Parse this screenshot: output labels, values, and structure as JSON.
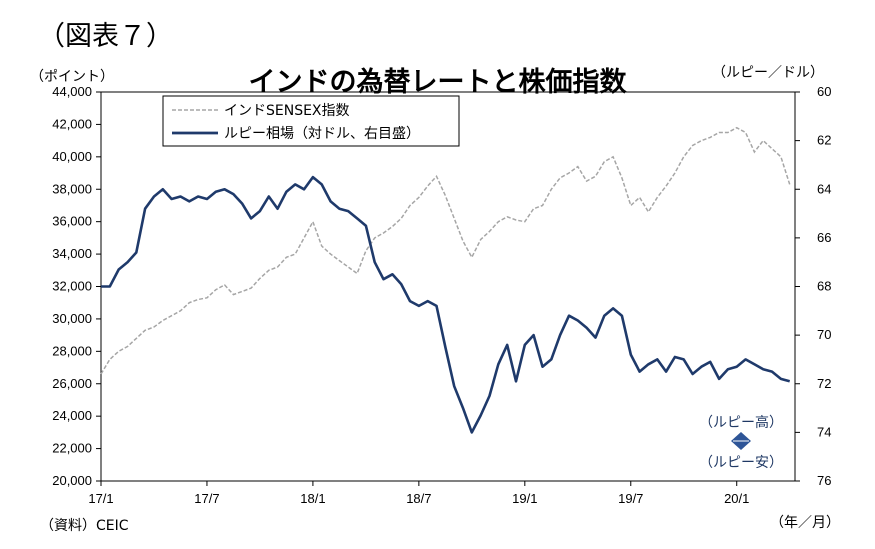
{
  "figure_label": "（図表７）",
  "source": "（資料）CEIC",
  "annotations": {
    "rupee_up": "（ルピー高）",
    "rupee_down": "（ルピー安）"
  },
  "colors": {
    "sensex": "#a6a6a6",
    "rupee": "#1f3a6b",
    "arrow": "#2e5597"
  },
  "chart_data": {
    "type": "line",
    "title": "インドの為替レートと株価指数",
    "ylabel_left": "（ポイント）",
    "ylabel_right": "（ルピー／ドル）",
    "xlabel_unit": "（年／月）",
    "x_ticks": [
      "17/1",
      "17/7",
      "18/1",
      "18/7",
      "19/1",
      "19/7",
      "20/1"
    ],
    "y_left": {
      "min": 20000,
      "max": 44000,
      "ticks": [
        "20,000",
        "22,000",
        "24,000",
        "26,000",
        "28,000",
        "30,000",
        "32,000",
        "34,000",
        "36,000",
        "38,000",
        "40,000",
        "42,000",
        "44,000"
      ]
    },
    "y_right": {
      "min": 60,
      "max": 76,
      "inverted": true,
      "ticks": [
        "60",
        "62",
        "64",
        "66",
        "68",
        "70",
        "72",
        "74",
        "76"
      ]
    },
    "x_range_months": [
      0,
      39.3
    ],
    "series": [
      {
        "name": "インドSENSEX指数",
        "axis": "left",
        "style": "dashed",
        "points": [
          [
            0,
            26600
          ],
          [
            0.5,
            27500
          ],
          [
            1,
            28000
          ],
          [
            1.5,
            28300
          ],
          [
            2,
            28800
          ],
          [
            2.5,
            29300
          ],
          [
            3,
            29500
          ],
          [
            3.5,
            29900
          ],
          [
            4,
            30200
          ],
          [
            4.5,
            30500
          ],
          [
            5,
            31000
          ],
          [
            5.5,
            31200
          ],
          [
            6,
            31300
          ],
          [
            6.5,
            31800
          ],
          [
            7,
            32100
          ],
          [
            7.5,
            31500
          ],
          [
            8,
            31700
          ],
          [
            8.5,
            31900
          ],
          [
            9,
            32500
          ],
          [
            9.5,
            33000
          ],
          [
            10,
            33200
          ],
          [
            10.5,
            33800
          ],
          [
            11,
            34000
          ],
          [
            11.5,
            35000
          ],
          [
            12,
            36000
          ],
          [
            12.5,
            34500
          ],
          [
            13,
            34000
          ],
          [
            13.5,
            33600
          ],
          [
            14,
            33200
          ],
          [
            14.5,
            32800
          ],
          [
            15,
            34200
          ],
          [
            15.5,
            35000
          ],
          [
            16,
            35300
          ],
          [
            16.5,
            35700
          ],
          [
            17,
            36200
          ],
          [
            17.5,
            37000
          ],
          [
            18,
            37500
          ],
          [
            18.5,
            38200
          ],
          [
            19,
            38800
          ],
          [
            19.5,
            37600
          ],
          [
            20,
            36200
          ],
          [
            20.5,
            34800
          ],
          [
            21,
            33800
          ],
          [
            21.5,
            34900
          ],
          [
            22,
            35400
          ],
          [
            22.5,
            36000
          ],
          [
            23,
            36300
          ],
          [
            23.5,
            36100
          ],
          [
            24,
            36000
          ],
          [
            24.5,
            36800
          ],
          [
            25,
            37000
          ],
          [
            25.5,
            38000
          ],
          [
            26,
            38700
          ],
          [
            26.5,
            39000
          ],
          [
            27,
            39400
          ],
          [
            27.5,
            38500
          ],
          [
            28,
            38800
          ],
          [
            28.5,
            39700
          ],
          [
            29,
            40000
          ],
          [
            29.5,
            38700
          ],
          [
            30,
            37000
          ],
          [
            30.5,
            37500
          ],
          [
            31,
            36600
          ],
          [
            31.5,
            37500
          ],
          [
            32,
            38200
          ],
          [
            32.5,
            39000
          ],
          [
            33,
            40000
          ],
          [
            33.5,
            40700
          ],
          [
            34,
            41000
          ],
          [
            34.5,
            41200
          ],
          [
            35,
            41500
          ],
          [
            35.5,
            41500
          ],
          [
            36,
            41800
          ],
          [
            36.5,
            41500
          ],
          [
            37,
            40300
          ],
          [
            37.5,
            41000
          ],
          [
            38,
            40500
          ],
          [
            38.5,
            40000
          ],
          [
            39,
            38300
          ]
        ]
      },
      {
        "name": "ルピー相場（対ドル、右目盛）",
        "axis": "right",
        "style": "solid",
        "points": [
          [
            0,
            68.0
          ],
          [
            0.5,
            68.0
          ],
          [
            1,
            67.3
          ],
          [
            1.5,
            67.0
          ],
          [
            2,
            66.6
          ],
          [
            2.5,
            64.8
          ],
          [
            3,
            64.3
          ],
          [
            3.5,
            64.0
          ],
          [
            4,
            64.4
          ],
          [
            4.5,
            64.3
          ],
          [
            5,
            64.5
          ],
          [
            5.5,
            64.3
          ],
          [
            6,
            64.4
          ],
          [
            6.5,
            64.1
          ],
          [
            7,
            64.0
          ],
          [
            7.5,
            64.2
          ],
          [
            8,
            64.6
          ],
          [
            8.5,
            65.2
          ],
          [
            9,
            64.9
          ],
          [
            9.5,
            64.3
          ],
          [
            10,
            64.8
          ],
          [
            10.5,
            64.1
          ],
          [
            11,
            63.8
          ],
          [
            11.5,
            64.0
          ],
          [
            12,
            63.5
          ],
          [
            12.5,
            63.8
          ],
          [
            13,
            64.5
          ],
          [
            13.5,
            64.8
          ],
          [
            14,
            64.9
          ],
          [
            14.5,
            65.2
          ],
          [
            15,
            65.5
          ],
          [
            15.5,
            67.0
          ],
          [
            16,
            67.7
          ],
          [
            16.5,
            67.5
          ],
          [
            17,
            67.9
          ],
          [
            17.5,
            68.6
          ],
          [
            18,
            68.8
          ],
          [
            18.5,
            68.6
          ],
          [
            19,
            68.8
          ],
          [
            19.5,
            70.5
          ],
          [
            20,
            72.1
          ],
          [
            20.5,
            73.0
          ],
          [
            21,
            74.0
          ],
          [
            21.5,
            73.3
          ],
          [
            22,
            72.5
          ],
          [
            22.5,
            71.2
          ],
          [
            23,
            70.4
          ],
          [
            23.5,
            71.9
          ],
          [
            24,
            70.4
          ],
          [
            24.5,
            70.0
          ],
          [
            25,
            71.3
          ],
          [
            25.5,
            71.0
          ],
          [
            26,
            70.0
          ],
          [
            26.5,
            69.2
          ],
          [
            27,
            69.4
          ],
          [
            27.5,
            69.7
          ],
          [
            28,
            70.1
          ],
          [
            28.5,
            69.2
          ],
          [
            29,
            68.9
          ],
          [
            29.5,
            69.2
          ],
          [
            30,
            70.8
          ],
          [
            30.5,
            71.5
          ],
          [
            31,
            71.2
          ],
          [
            31.5,
            71.0
          ],
          [
            32,
            71.5
          ],
          [
            32.5,
            70.9
          ],
          [
            33,
            71.0
          ],
          [
            33.5,
            71.6
          ],
          [
            34,
            71.3
          ],
          [
            34.5,
            71.1
          ],
          [
            35,
            71.8
          ],
          [
            35.5,
            71.4
          ],
          [
            36,
            71.3
          ],
          [
            36.5,
            71.0
          ],
          [
            37,
            71.2
          ],
          [
            37.5,
            71.4
          ],
          [
            38,
            71.5
          ],
          [
            38.5,
            71.8
          ],
          [
            39,
            71.9
          ]
        ]
      }
    ],
    "legend": {
      "position": "top-left"
    },
    "grid": false
  }
}
